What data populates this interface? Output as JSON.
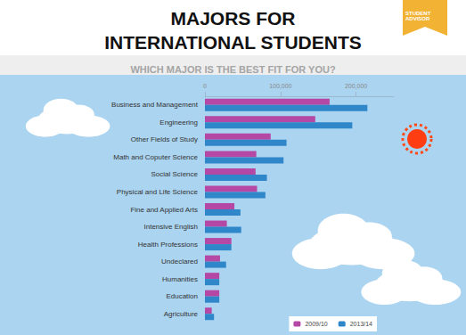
{
  "chart_data": {
    "type": "bar",
    "orientation": "horizontal",
    "title": "MAJORS FOR\nINTERNATIONAL STUDENTS",
    "subtitle": "WHICH MAJOR IS THE BEST FIT FOR YOU?",
    "annotations": [
      "STUDENT ADVISOR"
    ],
    "categories": [
      "Business and Management",
      "Engineering",
      "Other Fields of Study",
      "Math and Coputer Science",
      "Social Science",
      "Physical and Life Science",
      "Fine and Applied Arts",
      "Intensive English",
      "Health Professions",
      "Undeclared",
      "Humanities",
      "Education",
      "Agriculture"
    ],
    "series": [
      {
        "name": "2009/10",
        "color": "#b548a5",
        "values": [
          165000,
          146000,
          87000,
          68000,
          67000,
          69000,
          39000,
          29000,
          35000,
          20000,
          19000,
          19000,
          9000
        ]
      },
      {
        "name": "2013/14",
        "color": "#2f86c9",
        "values": [
          215000,
          195000,
          108000,
          104000,
          82000,
          80000,
          47000,
          48000,
          35000,
          28000,
          19000,
          19000,
          12000
        ]
      }
    ],
    "xlim": [
      0,
      250000
    ],
    "xticks": [
      0,
      {
        "value": 100000,
        "label": "100,000"
      },
      {
        "value": 200000,
        "label": "200,000"
      }
    ],
    "legend": "lower right",
    "grid": false
  }
}
